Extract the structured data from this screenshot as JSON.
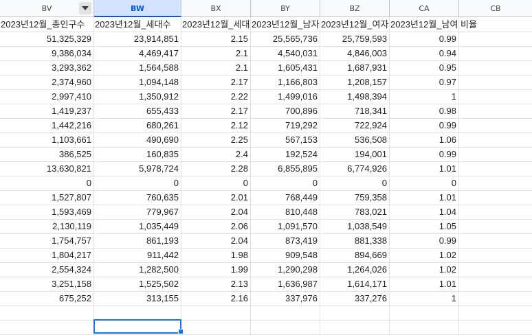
{
  "columns": [
    "BV",
    "BW",
    "BX",
    "BY",
    "BZ",
    "CA",
    "CB"
  ],
  "selected_column": "BW",
  "header_row": [
    "2023년12월_총인구수",
    "2023년12월_세대수",
    "2023년12월_세대",
    "2023년12월_남자",
    "2023년12월_여자",
    "2023년12월_남여 비율",
    ""
  ],
  "rows": [
    [
      "51,325,329",
      "23,914,851",
      "2.15",
      "25,565,736",
      "25,759,593",
      "0.99",
      ""
    ],
    [
      "9,386,034",
      "4,469,417",
      "2.1",
      "4,540,031",
      "4,846,003",
      "0.94",
      ""
    ],
    [
      "3,293,362",
      "1,564,588",
      "2.1",
      "1,605,431",
      "1,687,931",
      "0.95",
      ""
    ],
    [
      "2,374,960",
      "1,094,148",
      "2.17",
      "1,166,803",
      "1,208,157",
      "0.97",
      ""
    ],
    [
      "2,997,410",
      "1,350,912",
      "2.22",
      "1,499,016",
      "1,498,394",
      "1",
      ""
    ],
    [
      "1,419,237",
      "655,433",
      "2.17",
      "700,896",
      "718,341",
      "0.98",
      ""
    ],
    [
      "1,442,216",
      "680,261",
      "2.12",
      "719,292",
      "722,924",
      "0.99",
      ""
    ],
    [
      "1,103,661",
      "490,690",
      "2.25",
      "567,153",
      "536,508",
      "1.06",
      ""
    ],
    [
      "386,525",
      "160,835",
      "2.4",
      "192,524",
      "194,001",
      "0.99",
      ""
    ],
    [
      "13,630,821",
      "5,978,724",
      "2.28",
      "6,855,895",
      "6,774,926",
      "1.01",
      ""
    ],
    [
      "0",
      "0",
      "0",
      "0",
      "0",
      "0",
      ""
    ],
    [
      "1,527,807",
      "760,635",
      "2.01",
      "768,449",
      "759,358",
      "1.01",
      ""
    ],
    [
      "1,593,469",
      "779,967",
      "2.04",
      "810,448",
      "783,021",
      "1.04",
      ""
    ],
    [
      "2,130,119",
      "1,035,449",
      "2.06",
      "1,091,570",
      "1,038,549",
      "1.05",
      ""
    ],
    [
      "1,754,757",
      "861,193",
      "2.04",
      "873,419",
      "881,338",
      "0.99",
      ""
    ],
    [
      "1,804,217",
      "911,442",
      "1.98",
      "909,548",
      "894,669",
      "1.02",
      ""
    ],
    [
      "2,554,324",
      "1,282,500",
      "1.99",
      "1,290,298",
      "1,264,026",
      "1.02",
      ""
    ],
    [
      "3,251,158",
      "1,525,502",
      "2.13",
      "1,636,987",
      "1,614,171",
      "1.01",
      ""
    ],
    [
      "675,252",
      "313,155",
      "2.16",
      "337,976",
      "337,276",
      "1",
      ""
    ],
    [
      "",
      "",
      "",
      "",
      "",
      "",
      ""
    ],
    [
      "",
      "",
      "",
      "",
      "",
      "",
      ""
    ]
  ],
  "icons": {
    "filter": "filter-dropdown-icon"
  },
  "colors": {
    "selected_header_bg": "#d3e3fd",
    "selected_header_text": "#0b57d0",
    "selection_border": "#1a73e8"
  }
}
